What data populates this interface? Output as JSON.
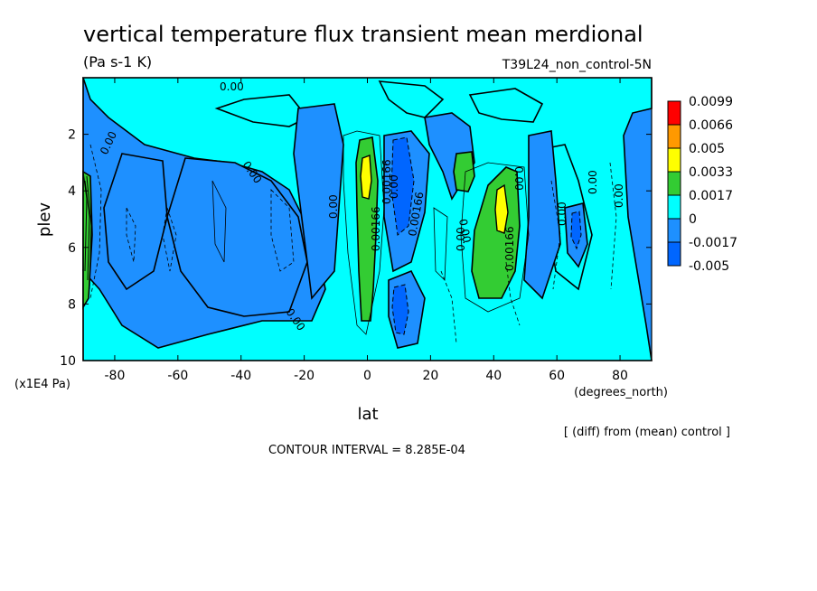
{
  "chart_data": {
    "type": "heatmap",
    "title": "vertical temperature flux transient mean merdional",
    "units": "(Pa s-1 K)",
    "run_label": "T39L24_non_control-5N",
    "xlabel": "lat",
    "x_units": "(degrees_north)",
    "ylabel": "plev",
    "y_units": "(x1E4 Pa)",
    "diff_note": "[ (diff) from (mean) control ]",
    "contour_interval": "CONTOUR INTERVAL = 8.285E-04",
    "xlim": [
      -90,
      90
    ],
    "ylim": [
      0,
      10
    ],
    "y_inverted": true,
    "x_ticks": [
      "-80",
      "-60",
      "-40",
      "-20",
      "0",
      "20",
      "40",
      "60",
      "80"
    ],
    "x_tick_values": [
      -80,
      -60,
      -40,
      -20,
      0,
      20,
      40,
      60,
      80
    ],
    "y_ticks": [
      "2",
      "4",
      "6",
      "8",
      "10"
    ],
    "y_tick_values": [
      2,
      4,
      6,
      8,
      10
    ],
    "colorbar": {
      "labels": [
        "0.0099",
        "0.0066",
        "0.005",
        "0.0033",
        "0.0017",
        "0",
        "-0.0017",
        "-0.005"
      ],
      "colors": [
        "#ff0000",
        "#ff9900",
        "#ffff00",
        "#33cc33",
        "#00ffff",
        "#1e90ff",
        "#0066ff",
        "#0066ff"
      ]
    },
    "contour_labels": [
      "0.00",
      "0.00",
      "0.00",
      "0.00",
      "0.00",
      "0.00",
      "0.00",
      "0.00",
      "0.00",
      "0.00",
      "0.00",
      "0.00",
      "0.00166",
      "0.00166",
      "0.00166",
      "0.00166"
    ],
    "features": [
      {
        "lat": 0,
        "plev": 4,
        "level": 0.005
      },
      {
        "lat": 8,
        "plev": 5,
        "level": -0.005
      },
      {
        "lat": 30,
        "plev": 3.5,
        "level": 0.0017
      },
      {
        "lat": 42,
        "plev": 5,
        "level": 0.005
      },
      {
        "lat": 65,
        "plev": 5.5,
        "level": -0.005
      },
      {
        "lat": -88,
        "plev": 5,
        "level": 0.0017
      }
    ]
  }
}
